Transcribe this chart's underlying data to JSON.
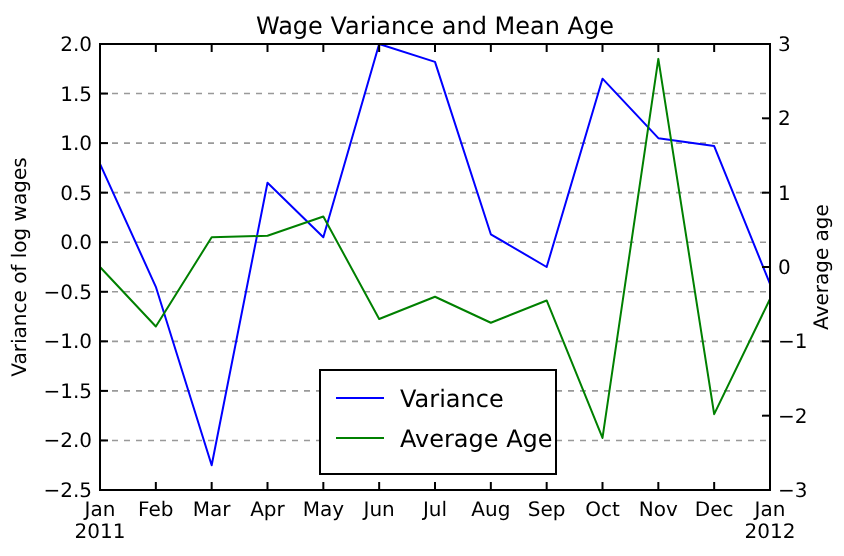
{
  "chart_data": {
    "type": "line",
    "title": "Wage Variance and Mean Age",
    "categories": [
      "Jan\n2011",
      "Feb",
      "Mar",
      "Apr",
      "May",
      "Jun",
      "Jul",
      "Aug",
      "Sep",
      "Oct",
      "Nov",
      "Dec",
      "Jan\n2012"
    ],
    "series": [
      {
        "name": "Variance",
        "color": "#0000ff",
        "values": [
          0.79,
          -0.45,
          -2.25,
          0.6,
          0.05,
          2.0,
          1.82,
          0.08,
          -0.25,
          1.65,
          1.05,
          0.97,
          -0.42
        ]
      },
      {
        "name": "Average Age",
        "color": "#008000",
        "axis": "y2",
        "values": [
          0.0,
          -0.8,
          0.4,
          0.42,
          0.68,
          -0.7,
          -0.4,
          -0.75,
          -0.45,
          -2.3,
          2.8,
          -1.98,
          -0.43
        ]
      }
    ],
    "ylabel": "Variance of log wages",
    "y2label": "Average age",
    "ylim": [
      -2.5,
      2.0
    ],
    "yticks": [
      {
        "value": -2.5,
        "label": "−2.5"
      },
      {
        "value": -2,
        "label": "−2.0"
      },
      {
        "value": -1.5,
        "label": "−1.5"
      },
      {
        "value": -1,
        "label": "−1.0"
      },
      {
        "value": -0.5,
        "label": "−0.5"
      },
      {
        "value": 0,
        "label": "0.0"
      },
      {
        "value": 0.5,
        "label": "0.5"
      },
      {
        "value": 1,
        "label": "1.0"
      },
      {
        "value": 1.5,
        "label": "1.5"
      },
      {
        "value": 2,
        "label": "2.0"
      }
    ],
    "y2lim": [
      -3,
      3
    ],
    "y2ticks": [
      -3,
      -2,
      -1,
      0,
      1,
      2,
      3
    ],
    "grid": "y",
    "legend": "bottom",
    "marker": "none",
    "line_style": "solid"
  }
}
